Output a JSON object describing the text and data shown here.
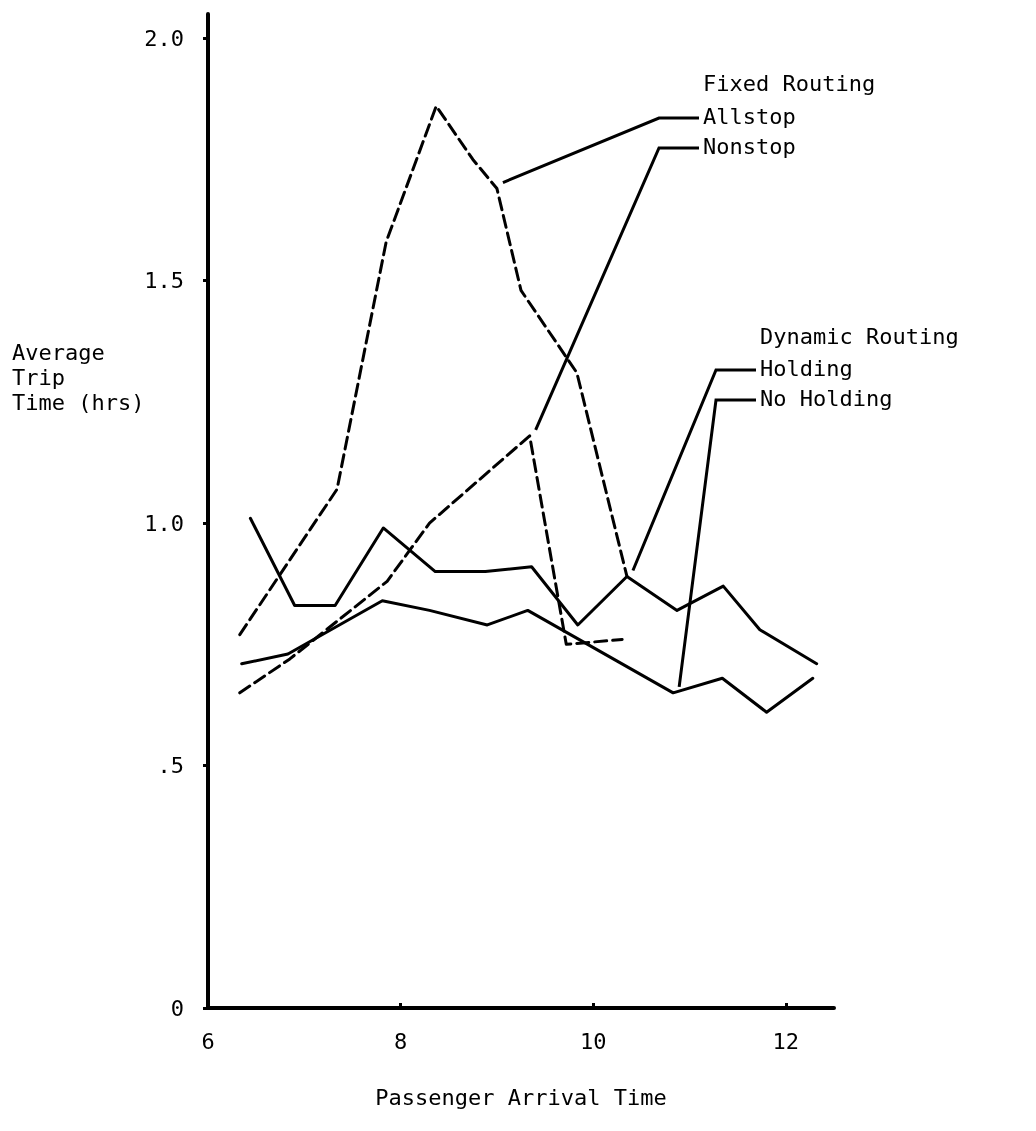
{
  "chart_data": {
    "type": "line",
    "xlabel": "Passenger Arrival Time",
    "ylabel": "Average\nTrip\nTime (hrs)",
    "xlim": [
      6,
      12.5
    ],
    "xticks": [
      6,
      8,
      10,
      12
    ],
    "ylim": [
      0,
      2.05
    ],
    "yticks": [
      0,
      {
        "value": 0.5,
        "label": ".5"
      },
      {
        "value": 1,
        "label": "1.0"
      },
      {
        "value": 1.5,
        "label": "1.5"
      },
      {
        "value": 2,
        "label": "2.0"
      }
    ],
    "grid": false,
    "legend": false,
    "marker": "none",
    "annotations": [
      "Fixed Routing",
      "Dynamic Routing"
    ],
    "series": [
      {
        "name": "Allstop",
        "color": "#000000",
        "line_style": "dashed",
        "x": [
          6.33,
          7.34,
          7.85,
          8.37,
          8.75,
          9.0,
          9.25,
          9.83,
          10.35
        ],
        "values": [
          0.77,
          1.07,
          1.58,
          1.86,
          1.75,
          1.69,
          1.48,
          1.31,
          0.89
        ]
      },
      {
        "name": "Nonstop",
        "color": "#000000",
        "line_style": "dashed",
        "x": [
          6.33,
          6.85,
          7.86,
          8.3,
          9.34,
          9.72,
          10.3
        ],
        "values": [
          0.65,
          0.72,
          0.88,
          1.0,
          1.18,
          0.75,
          0.76
        ]
      },
      {
        "name": "Holding",
        "color": "#000000",
        "line_style": "solid",
        "x": [
          6.44,
          6.9,
          7.32,
          7.82,
          8.36,
          8.88,
          9.36,
          9.84,
          10.35,
          10.87,
          11.35,
          11.73,
          12.32
        ],
        "values": [
          1.01,
          0.83,
          0.83,
          0.99,
          0.9,
          0.9,
          0.91,
          0.79,
          0.89,
          0.82,
          0.87,
          0.78,
          0.71
        ]
      },
      {
        "name": "No Holding",
        "color": "#000000",
        "line_style": "solid",
        "x": [
          6.35,
          6.83,
          7.81,
          8.3,
          8.9,
          9.32,
          10.83,
          11.34,
          11.8,
          12.28
        ],
        "values": [
          0.71,
          0.73,
          0.84,
          0.82,
          0.79,
          0.82,
          0.65,
          0.68,
          0.61,
          0.68
        ]
      }
    ]
  }
}
